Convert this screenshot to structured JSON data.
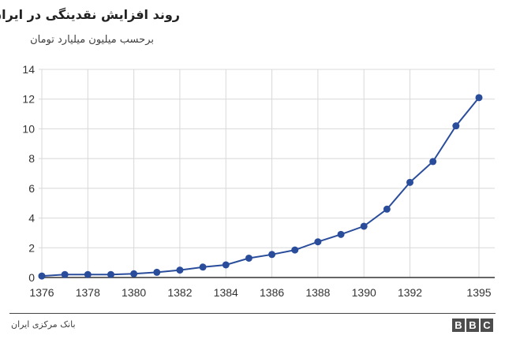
{
  "header": {
    "title": "روند افزایش نقدینگی در ایران",
    "subtitle": "برحسب میلیون میلیارد تومان"
  },
  "footer": {
    "source": "بانک مرکزی ایران",
    "logo_letters": [
      "B",
      "B",
      "C"
    ]
  },
  "colors": {
    "series": "#2a4d9b",
    "grid": "#d8d8d8",
    "axis": "#333333"
  },
  "chart_data": {
    "type": "line",
    "title": "روند افزایش نقدینگی در ایران",
    "subtitle": "برحسب میلیون میلیارد تومان",
    "xlabel": "",
    "ylabel": "",
    "xlim": [
      1376,
      1395
    ],
    "ylim": [
      0,
      14
    ],
    "x_ticks": [
      1376,
      1378,
      1380,
      1382,
      1384,
      1386,
      1388,
      1390,
      1392,
      1395
    ],
    "y_ticks": [
      0,
      2,
      4,
      6,
      8,
      10,
      12,
      14
    ],
    "grid": true,
    "legend": "none",
    "series": [
      {
        "x": [
          1376,
          1377,
          1378,
          1379,
          1380,
          1381,
          1382,
          1383,
          1384,
          1385,
          1386,
          1387,
          1388,
          1389,
          1390,
          1391,
          1392,
          1393,
          1394,
          1395
        ],
        "values": [
          0.1,
          0.2,
          0.2,
          0.2,
          0.25,
          0.35,
          0.5,
          0.7,
          0.85,
          1.3,
          1.55,
          1.85,
          2.4,
          2.9,
          3.45,
          4.6,
          6.4,
          7.8,
          10.2,
          12.1
        ]
      }
    ]
  }
}
